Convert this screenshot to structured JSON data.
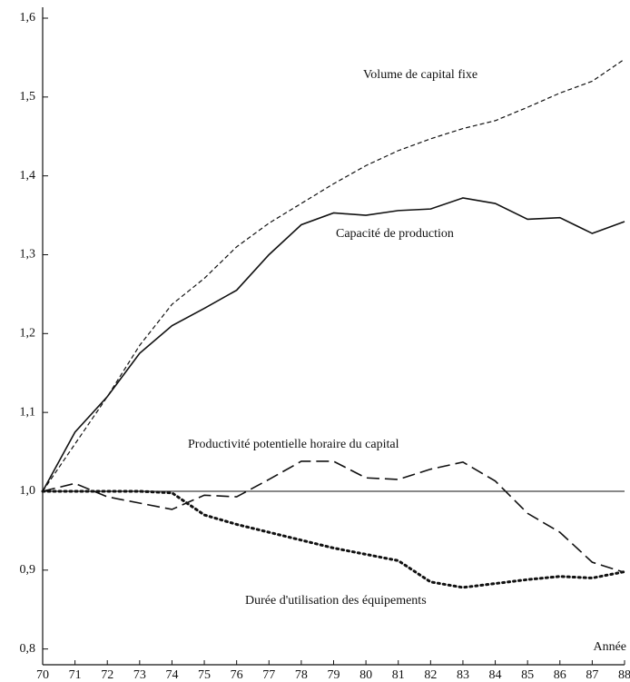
{
  "chart_data": {
    "type": "line",
    "x_label": "Année",
    "x": [
      70,
      71,
      72,
      73,
      74,
      75,
      76,
      77,
      78,
      79,
      80,
      81,
      82,
      83,
      84,
      85,
      86,
      87,
      88
    ],
    "xlim": [
      70,
      88
    ],
    "xticks": [
      70,
      71,
      72,
      73,
      74,
      75,
      76,
      77,
      78,
      79,
      80,
      81,
      82,
      83,
      84,
      85,
      86,
      87,
      88
    ],
    "ylim": [
      0.78,
      1.6
    ],
    "yticks": [
      {
        "value": 0.8,
        "label": "0,8"
      },
      {
        "value": 0.9,
        "label": "0,9"
      },
      {
        "value": 1.0,
        "label": "1,0"
      },
      {
        "value": 1.1,
        "label": "1,1"
      },
      {
        "value": 1.2,
        "label": "1,2"
      },
      {
        "value": 1.3,
        "label": "1,3"
      },
      {
        "value": 1.4,
        "label": "1,4"
      },
      {
        "value": 1.5,
        "label": "1,5"
      },
      {
        "value": 1.6,
        "label": "1,6"
      }
    ],
    "reference_line": 1.0,
    "series": [
      {
        "name": "Volume de capital fixe",
        "color": "#111111",
        "style": "short-dash",
        "values": [
          1.0,
          1.06,
          1.12,
          1.185,
          1.237,
          1.27,
          1.31,
          1.34,
          1.365,
          1.39,
          1.413,
          1.432,
          1.447,
          1.46,
          1.47,
          1.487,
          1.505,
          1.52,
          1.548
        ]
      },
      {
        "name": "Capacité de production",
        "color": "#111111",
        "style": "solid",
        "values": [
          1.0,
          1.075,
          1.12,
          1.175,
          1.21,
          1.232,
          1.255,
          1.3,
          1.338,
          1.353,
          1.35,
          1.356,
          1.358,
          1.372,
          1.365,
          1.345,
          1.347,
          1.327,
          1.342
        ]
      },
      {
        "name": "Productivité potentielle horaire du capital",
        "color": "#111111",
        "style": "long-dash",
        "values": [
          1.0,
          1.01,
          0.993,
          0.985,
          0.977,
          0.995,
          0.993,
          1.015,
          1.038,
          1.038,
          1.017,
          1.015,
          1.028,
          1.037,
          1.013,
          0.972,
          0.948,
          0.91,
          0.897
        ]
      },
      {
        "name": "Durée d'utilisation des équipements",
        "color": "#111111",
        "style": "dotted",
        "values": [
          1.0,
          1.0,
          1.0,
          1.0,
          0.998,
          0.97,
          0.958,
          0.948,
          0.938,
          0.928,
          0.92,
          0.912,
          0.885,
          0.878,
          0.883,
          0.888,
          0.892,
          0.89,
          0.898
        ]
      }
    ]
  }
}
